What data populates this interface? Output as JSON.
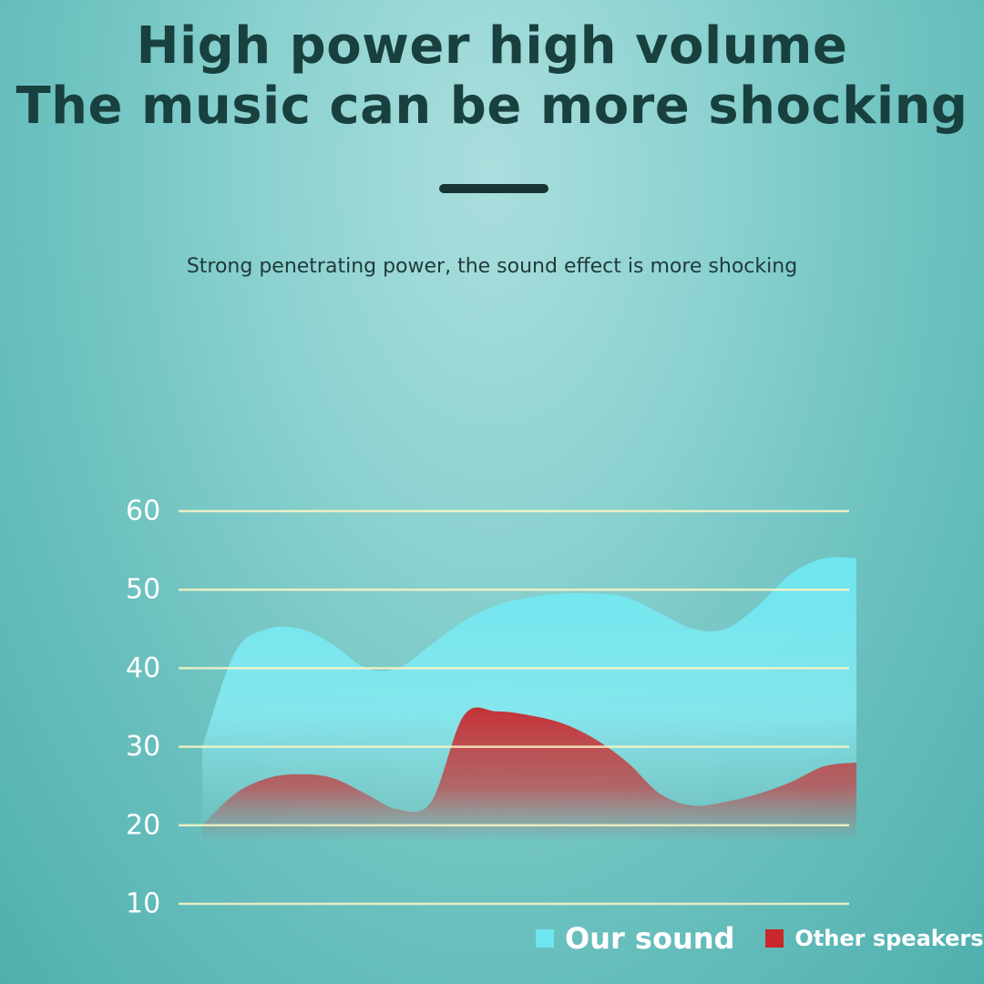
{
  "header": {
    "title_line1": "High power high volume",
    "title_line2": "The music can be more shocking",
    "subtitle": "Strong penetrating power, the sound effect is more shocking"
  },
  "chart_data": {
    "type": "area",
    "y_ticks": [
      "10",
      "20",
      "30",
      "40",
      "50",
      "60"
    ],
    "ylim": [
      10,
      60
    ],
    "x": [
      0,
      1,
      2,
      3,
      4,
      5,
      6,
      7,
      8,
      9,
      10,
      11,
      12,
      13,
      14,
      15,
      16,
      17,
      18,
      19,
      20
    ],
    "series": [
      {
        "name": "Our sound",
        "color": "#6ee6f0",
        "values": [
          30,
          42,
          45,
          45,
          43,
          40,
          40,
          43,
          46,
          48,
          49,
          49.5,
          49.5,
          49,
          47,
          45,
          45,
          48,
          52,
          54,
          54
        ]
      },
      {
        "name": "Other speakers",
        "color": "#c8272b",
        "values": [
          20,
          24,
          26,
          26.5,
          26,
          24,
          22,
          23,
          34,
          34.5,
          34,
          33,
          31,
          28,
          24,
          22.5,
          23,
          24,
          25.5,
          27.5,
          28
        ]
      }
    ],
    "grid": true,
    "grid_color": "#fbf6c4",
    "legend_position": "bottom-right"
  }
}
